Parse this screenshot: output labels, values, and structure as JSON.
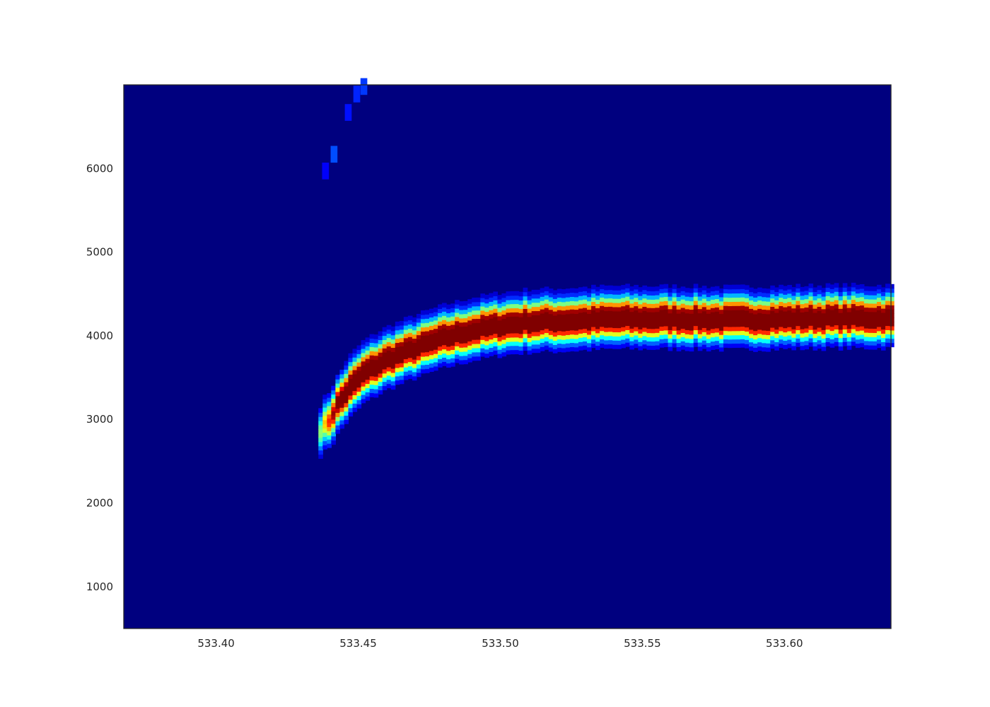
{
  "chart_data": {
    "type": "heatmap",
    "title": "",
    "xlabel": "",
    "ylabel": "",
    "xlim": [
      533.3675,
      533.6375
    ],
    "ylim": [
      500,
      7000
    ],
    "x_ticks": [
      "533.40",
      "533.45",
      "533.50",
      "533.55",
      "533.60"
    ],
    "y_ticks": [
      "1000",
      "2000",
      "3000",
      "4000",
      "5000",
      "6000"
    ],
    "colormap": "jet",
    "background_color": "#00007f",
    "grid": false,
    "legend": "none",
    "ridge": {
      "description_units": "x in data units, y center in data units, intensity 0-1",
      "points": [
        {
          "x": 533.436,
          "y": 2850,
          "intensity": 0.35
        },
        {
          "x": 533.44,
          "y": 3000,
          "intensity": 0.7
        },
        {
          "x": 533.443,
          "y": 3200,
          "intensity": 0.9
        },
        {
          "x": 533.447,
          "y": 3380,
          "intensity": 1.0
        },
        {
          "x": 533.452,
          "y": 3560,
          "intensity": 1.0
        },
        {
          "x": 533.46,
          "y": 3720,
          "intensity": 1.0
        },
        {
          "x": 533.47,
          "y": 3860,
          "intensity": 1.0
        },
        {
          "x": 533.48,
          "y": 3980,
          "intensity": 1.0
        },
        {
          "x": 533.49,
          "y": 4070,
          "intensity": 1.0
        },
        {
          "x": 533.5,
          "y": 4130,
          "intensity": 1.0
        },
        {
          "x": 533.51,
          "y": 4170,
          "intensity": 1.0
        },
        {
          "x": 533.52,
          "y": 4180,
          "intensity": 1.0
        },
        {
          "x": 533.54,
          "y": 4210,
          "intensity": 1.0
        },
        {
          "x": 533.56,
          "y": 4210,
          "intensity": 1.0
        },
        {
          "x": 533.58,
          "y": 4200,
          "intensity": 1.0
        },
        {
          "x": 533.6,
          "y": 4210,
          "intensity": 1.0
        },
        {
          "x": 533.62,
          "y": 4220,
          "intensity": 1.0
        },
        {
          "x": 533.6375,
          "y": 4220,
          "intensity": 1.0
        }
      ],
      "half_width": 230
    },
    "faint_trace": [
      {
        "x": 533.4385,
        "y": 5950,
        "intensity": 0.12
      },
      {
        "x": 533.4415,
        "y": 6150,
        "intensity": 0.2
      },
      {
        "x": 533.4465,
        "y": 6650,
        "intensity": 0.14
      },
      {
        "x": 533.4495,
        "y": 6870,
        "intensity": 0.16
      },
      {
        "x": 533.452,
        "y": 6960,
        "intensity": 0.18
      }
    ]
  }
}
